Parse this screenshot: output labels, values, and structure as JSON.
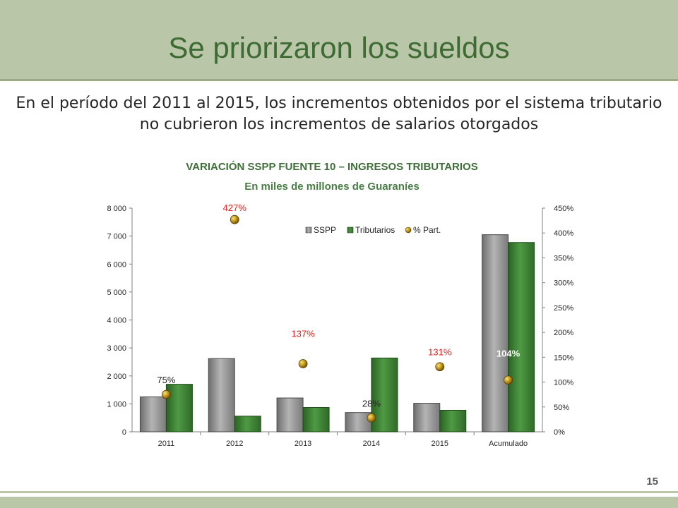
{
  "slide": {
    "title": "Se priorizaron los sueldos",
    "subtitle": "En el período del 2011 al 2015, los incrementos obtenidos por el sistema tributario no cubrieron los incrementos de salarios otorgados",
    "page_number": "15"
  },
  "colors": {
    "header": "#b9c7a8",
    "title": "#3e6b34",
    "sspp": "#8c8c8c",
    "tributarios": "#3d7f34",
    "part": "#b8860b",
    "label_red": "#e02020"
  },
  "chart_data": {
    "type": "bar",
    "title": "VARIACIÓN SSPP FUENTE 10 – INGRESOS TRIBUTARIOS",
    "subtitle": "En miles de millones de Guaraníes",
    "categories": [
      "2011",
      "2012",
      "2013",
      "2014",
      "2015",
      "Acumulado"
    ],
    "series": [
      {
        "name": "SSPP",
        "axis": "left",
        "values": [
          1250,
          2620,
          1210,
          690,
          1020,
          7050
        ]
      },
      {
        "name": "Tributarios",
        "axis": "left",
        "values": [
          1700,
          560,
          870,
          2640,
          770,
          6770
        ]
      },
      {
        "name": "% Part.",
        "axis": "right",
        "kind": "marker",
        "values": [
          75,
          427,
          137,
          28,
          131,
          104
        ],
        "labels": [
          "75%",
          "427%",
          "137%",
          "28%",
          "131%",
          "104%"
        ]
      }
    ],
    "ylim_left": [
      0,
      8000
    ],
    "ylim_right": [
      0,
      450
    ],
    "left_ticks": [
      "0",
      "1 000",
      "2 000",
      "3 000",
      "4 000",
      "5 000",
      "6 000",
      "7 000",
      "8 000"
    ],
    "right_ticks": [
      "0%",
      "50%",
      "100%",
      "150%",
      "200%",
      "250%",
      "300%",
      "350%",
      "400%",
      "450%"
    ],
    "legend_position": "top-right",
    "grid": false
  }
}
